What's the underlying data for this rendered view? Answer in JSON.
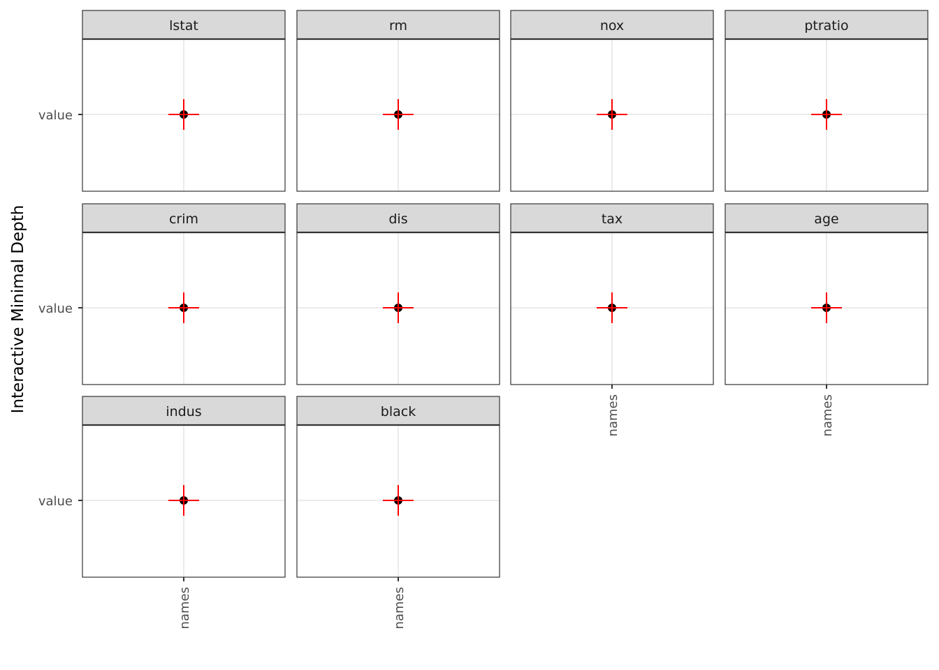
{
  "chart_data": {
    "type": "scatter",
    "ylabel": "Interactive Minimal Depth",
    "x_tick_label": "names",
    "y_tick_label": "value",
    "ncol": 4,
    "facets": [
      {
        "name": "lstat",
        "x": "names",
        "y": "value"
      },
      {
        "name": "rm",
        "x": "names",
        "y": "value"
      },
      {
        "name": "nox",
        "x": "names",
        "y": "value"
      },
      {
        "name": "ptratio",
        "x": "names",
        "y": "value"
      },
      {
        "name": "crim",
        "x": "names",
        "y": "value"
      },
      {
        "name": "dis",
        "x": "names",
        "y": "value"
      },
      {
        "name": "tax",
        "x": "names",
        "y": "value"
      },
      {
        "name": "age",
        "x": "names",
        "y": "value"
      },
      {
        "name": "indus",
        "x": "names",
        "y": "value"
      },
      {
        "name": "black",
        "x": "names",
        "y": "value"
      }
    ],
    "grid": true,
    "colors": {
      "point": "#000000",
      "crosshair": "#ff0000",
      "strip_fill": "#d9d9d9",
      "grid": "#ebebeb",
      "panel_border": "#333333"
    }
  }
}
